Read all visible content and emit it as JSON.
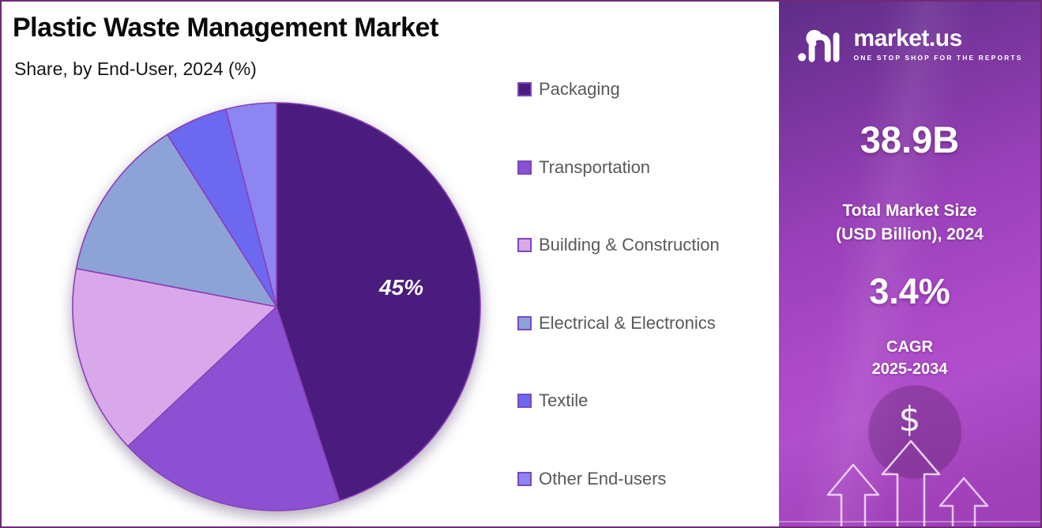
{
  "header": {
    "title": "Plastic Waste Management Market",
    "subtitle": "Share, by End-User, 2024 (%)"
  },
  "chart_data": {
    "type": "pie",
    "title": "Plastic Waste Management Market — Share, by End-User, 2024 (%)",
    "start_angle_deg": 0,
    "direction": "clockwise",
    "legend_position": "right",
    "slice_border_color": "#8a3fb8",
    "legend_marker_border": "#7b46be",
    "slices": [
      {
        "label": "Packaging",
        "value": 45,
        "color": "#4a1c7e",
        "data_label": "45%"
      },
      {
        "label": "Transportation",
        "value": 18,
        "color": "#8c51d3",
        "data_label": ""
      },
      {
        "label": "Building & Construction",
        "value": 15,
        "color": "#d9a8ea",
        "data_label": ""
      },
      {
        "label": "Electrical & Electronics",
        "value": 13,
        "color": "#8da3d8",
        "data_label": ""
      },
      {
        "label": "Textile",
        "value": 5,
        "color": "#6d68f0",
        "data_label": ""
      },
      {
        "label": "Other End-users",
        "value": 4,
        "color": "#8c85f2",
        "data_label": ""
      }
    ]
  },
  "sidebar": {
    "logo": {
      "brand": "market.us",
      "tagline": "ONE STOP SHOP FOR THE REPORTS"
    },
    "market_size_value": "38.9B",
    "market_size_label_line1": "Total Market Size",
    "market_size_label_line2": "(USD Billion), 2024",
    "cagr_value": "3.4%",
    "cagr_label_line1": "CAGR",
    "cagr_label_line2": "2025-2034",
    "dollar_symbol": "$"
  }
}
